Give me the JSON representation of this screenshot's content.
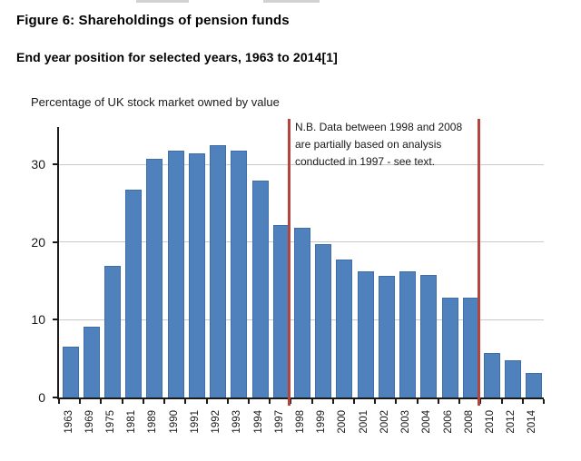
{
  "header": {
    "title": "Figure 6: Shareholdings of pension funds",
    "subtitle": "End year position for selected years, 1963 to 2014[1]"
  },
  "chart_data": {
    "type": "bar",
    "title": "Percentage of UK stock market owned by value",
    "categories": [
      "1963",
      "1969",
      "1975",
      "1981",
      "1989",
      "1990",
      "1991",
      "1992",
      "1993",
      "1994",
      "1997",
      "1998",
      "1999",
      "2000",
      "2001",
      "2002",
      "2003",
      "2004",
      "2006",
      "2008",
      "2010",
      "2012",
      "2014"
    ],
    "values": [
      6.4,
      9.0,
      16.8,
      26.7,
      30.6,
      31.7,
      31.3,
      32.4,
      31.7,
      27.8,
      22.1,
      21.7,
      19.6,
      17.7,
      16.1,
      15.6,
      16.1,
      15.7,
      12.7,
      12.8,
      5.6,
      4.7,
      3.0
    ],
    "xlabel": "",
    "ylabel": "",
    "ylim": [
      0,
      34.85
    ],
    "yticks": [
      0,
      10,
      20,
      30
    ],
    "grid": true,
    "legend": null,
    "colors": {
      "bar_fill": "#4f81bd",
      "bar_border": "#3e6da9",
      "gridline": "#c9c9c9",
      "axis": "#1a1a1a",
      "reference_line": "#b5443f"
    },
    "reference_lines": [
      {
        "between": [
          "1997",
          "1998"
        ],
        "boundary_index": 11
      },
      {
        "between": [
          "2008",
          "2010"
        ],
        "boundary_index": 20
      }
    ],
    "annotation": {
      "lines": [
        "N.B. Data between 1998 and 2008",
        "are partially based on analysis",
        "conducted in 1997 - see text."
      ]
    }
  }
}
